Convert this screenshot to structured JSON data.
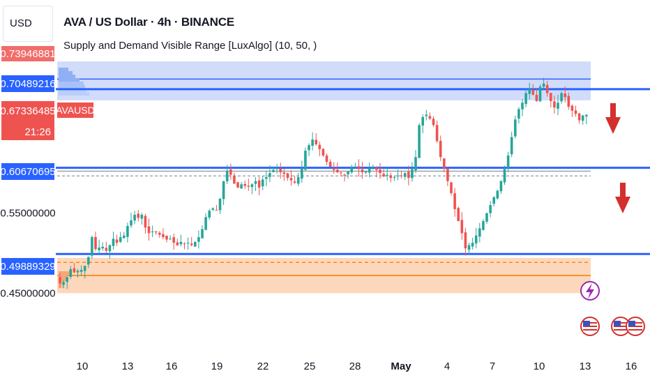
{
  "header": {
    "currency": "USD",
    "title": "AVA / US Dollar · 4h · BINANCE",
    "indicator": "Supply and Demand Visible Range [LuxAlgo] (10, 50, )"
  },
  "price_tags": {
    "top": "0.73946881",
    "resistance": "0.70489216",
    "current": "0.67336485",
    "symbol": "AVAUSD",
    "countdown": "21:26",
    "middle": "0.60670695",
    "support": "0.49889329"
  },
  "colors": {
    "up": "#26a69a",
    "down": "#ef5350",
    "level_line": "#2962ff",
    "supply_zone": "#d1dcfa",
    "demand_zone": "#fdd7bb",
    "demand_line": "#f57c00",
    "arrow": "#d32f2f",
    "event_icon": "#d32f2f",
    "flash_icon": "#9c27b0"
  },
  "icons": [
    "down-arrow-icon",
    "down-arrow-icon",
    "flash-icon",
    "us-flag-icon",
    "us-flag-icon",
    "us-flag-icon"
  ],
  "chart_data": {
    "type": "candlestick",
    "title": "AVA / US Dollar · 4h · BINANCE",
    "y_ticks": [
      0.55,
      0.45
    ],
    "y_tick_labels": [
      "0.55000000",
      "0.45000000"
    ],
    "ylim": [
      0.4155,
      0.7745
    ],
    "x_tick_labels": [
      "10",
      "13",
      "16",
      "19",
      "22",
      "25",
      "28",
      "May",
      "4",
      "7",
      "10",
      "13",
      "16"
    ],
    "price_levels": [
      {
        "label": "resistance",
        "value": 0.70489216
      },
      {
        "label": "middle",
        "value": 0.60670695
      },
      {
        "label": "support",
        "value": 0.49889329
      }
    ],
    "zones": [
      {
        "name": "supply",
        "top": 0.7395,
        "bottom": 0.691,
        "mid": 0.7045
      },
      {
        "name": "demand",
        "top": 0.494,
        "bottom": 0.45,
        "mid": 0.472
      }
    ],
    "close_path": [
      [
        0,
        0.462
      ],
      [
        1,
        0.464
      ],
      [
        2,
        0.47
      ],
      [
        3,
        0.48
      ],
      [
        4,
        0.476
      ],
      [
        5,
        0.478
      ],
      [
        6,
        0.479
      ],
      [
        7,
        0.484
      ],
      [
        8,
        0.495
      ],
      [
        9,
        0.52
      ],
      [
        10,
        0.505
      ],
      [
        11,
        0.507
      ],
      [
        12,
        0.508
      ],
      [
        13,
        0.503
      ],
      [
        14,
        0.51
      ],
      [
        15,
        0.518
      ],
      [
        16,
        0.513
      ],
      [
        17,
        0.52
      ],
      [
        18,
        0.522
      ],
      [
        19,
        0.534
      ],
      [
        20,
        0.541
      ],
      [
        21,
        0.548
      ],
      [
        22,
        0.544
      ],
      [
        23,
        0.548
      ],
      [
        24,
        0.532
      ],
      [
        25,
        0.525
      ],
      [
        26,
        0.527
      ],
      [
        27,
        0.526
      ],
      [
        28,
        0.523
      ],
      [
        29,
        0.52
      ],
      [
        30,
        0.517
      ],
      [
        31,
        0.518
      ],
      [
        32,
        0.513
      ],
      [
        33,
        0.51
      ],
      [
        34,
        0.514
      ],
      [
        35,
        0.512
      ],
      [
        36,
        0.513
      ],
      [
        37,
        0.51
      ],
      [
        38,
        0.514
      ],
      [
        39,
        0.52
      ],
      [
        40,
        0.53
      ],
      [
        41,
        0.545
      ],
      [
        42,
        0.553
      ],
      [
        43,
        0.556
      ],
      [
        44,
        0.554
      ],
      [
        45,
        0.568
      ],
      [
        46,
        0.59
      ],
      [
        47,
        0.603
      ],
      [
        48,
        0.598
      ],
      [
        49,
        0.587
      ],
      [
        50,
        0.582
      ],
      [
        51,
        0.586
      ],
      [
        52,
        0.584
      ],
      [
        53,
        0.583
      ],
      [
        54,
        0.586
      ],
      [
        55,
        0.59
      ],
      [
        56,
        0.582
      ],
      [
        57,
        0.592
      ],
      [
        58,
        0.595
      ],
      [
        59,
        0.6
      ],
      [
        60,
        0.604
      ],
      [
        61,
        0.606
      ],
      [
        62,
        0.601
      ],
      [
        63,
        0.599
      ],
      [
        64,
        0.594
      ],
      [
        65,
        0.591
      ],
      [
        66,
        0.588
      ],
      [
        67,
        0.595
      ],
      [
        68,
        0.606
      ],
      [
        69,
        0.628
      ],
      [
        70,
        0.635
      ],
      [
        71,
        0.642
      ],
      [
        72,
        0.636
      ],
      [
        73,
        0.63
      ],
      [
        74,
        0.622
      ],
      [
        75,
        0.614
      ],
      [
        76,
        0.608
      ],
      [
        77,
        0.604
      ],
      [
        78,
        0.601
      ],
      [
        79,
        0.6
      ],
      [
        80,
        0.597
      ],
      [
        81,
        0.602
      ],
      [
        82,
        0.607
      ],
      [
        83,
        0.608
      ],
      [
        84,
        0.605
      ],
      [
        85,
        0.601
      ],
      [
        86,
        0.602
      ],
      [
        87,
        0.606
      ],
      [
        88,
        0.608
      ],
      [
        89,
        0.604
      ],
      [
        90,
        0.6
      ],
      [
        91,
        0.596
      ],
      [
        92,
        0.598
      ],
      [
        93,
        0.594
      ],
      [
        94,
        0.595
      ],
      [
        95,
        0.597
      ],
      [
        96,
        0.597
      ],
      [
        97,
        0.6
      ],
      [
        98,
        0.594
      ],
      [
        99,
        0.605
      ],
      [
        100,
        0.62
      ],
      [
        101,
        0.66
      ],
      [
        102,
        0.67
      ],
      [
        103,
        0.673
      ],
      [
        104,
        0.668
      ],
      [
        105,
        0.66
      ],
      [
        106,
        0.64
      ],
      [
        107,
        0.62
      ],
      [
        108,
        0.606
      ],
      [
        109,
        0.59
      ],
      [
        110,
        0.575
      ],
      [
        111,
        0.555
      ],
      [
        112,
        0.54
      ],
      [
        113,
        0.525
      ],
      [
        114,
        0.506
      ],
      [
        115,
        0.51
      ],
      [
        116,
        0.513
      ],
      [
        117,
        0.522
      ],
      [
        118,
        0.531
      ],
      [
        119,
        0.54
      ],
      [
        120,
        0.55
      ],
      [
        121,
        0.56
      ],
      [
        122,
        0.57
      ],
      [
        123,
        0.578
      ],
      [
        124,
        0.59
      ],
      [
        125,
        0.605
      ],
      [
        126,
        0.622
      ],
      [
        127,
        0.645
      ],
      [
        128,
        0.667
      ],
      [
        129,
        0.68
      ],
      [
        130,
        0.688
      ],
      [
        131,
        0.7
      ],
      [
        132,
        0.705
      ],
      [
        133,
        0.698
      ],
      [
        134,
        0.69
      ],
      [
        135,
        0.708
      ],
      [
        136,
        0.712
      ],
      [
        137,
        0.7
      ],
      [
        138,
        0.69
      ],
      [
        139,
        0.682
      ],
      [
        140,
        0.688
      ],
      [
        141,
        0.7
      ],
      [
        142,
        0.695
      ],
      [
        143,
        0.683
      ],
      [
        144,
        0.678
      ],
      [
        145,
        0.674
      ],
      [
        146,
        0.666
      ],
      [
        147,
        0.672
      ],
      [
        148,
        0.673
      ]
    ]
  }
}
